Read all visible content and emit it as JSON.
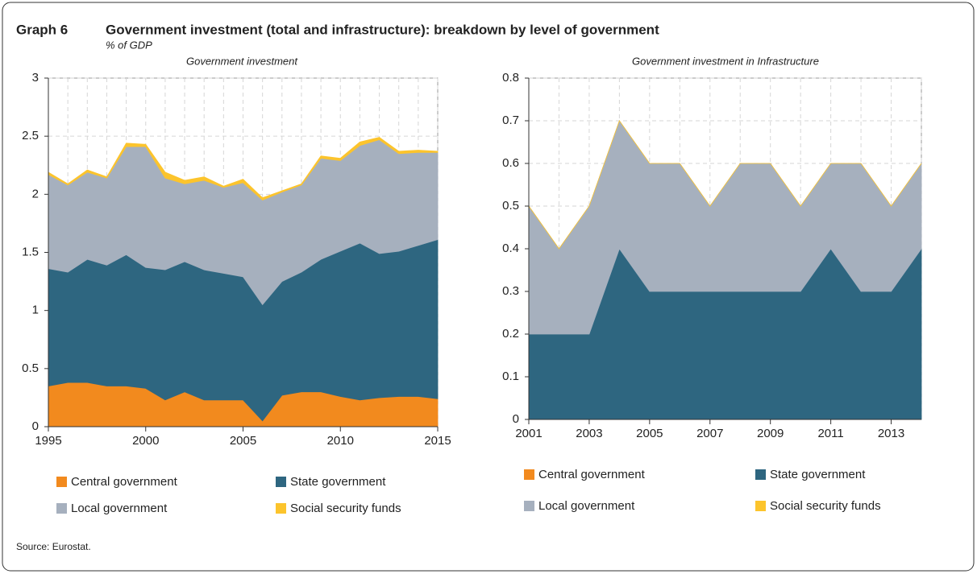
{
  "header": {
    "label": "Graph 6",
    "title": "Government investment (total and infrastructure): breakdown by level of government",
    "subtitle": "% of GDP"
  },
  "source": "Source: Eurostat.",
  "chart_data": [
    {
      "type": "area",
      "stacked": true,
      "title": "Government investment",
      "x": [
        1995,
        1996,
        1997,
        1998,
        1999,
        2000,
        2001,
        2002,
        2003,
        2004,
        2005,
        2006,
        2007,
        2008,
        2009,
        2010,
        2011,
        2012,
        2013,
        2014,
        2015
      ],
      "xlim": [
        1995,
        2015
      ],
      "xticks": [
        1995,
        2000,
        2005,
        2010,
        2015
      ],
      "ylim": [
        0,
        3
      ],
      "yticks": [
        0,
        0.5,
        1,
        1.5,
        2,
        2.5,
        3
      ],
      "grid": true,
      "legend": "bottom",
      "series": [
        {
          "name": "Central government",
          "color": "#f28a1e",
          "values": [
            0.35,
            0.38,
            0.38,
            0.35,
            0.35,
            0.33,
            0.23,
            0.3,
            0.23,
            0.23,
            0.23,
            0.05,
            0.27,
            0.3,
            0.3,
            0.26,
            0.23,
            0.25,
            0.26,
            0.26,
            0.24
          ]
        },
        {
          "name": "State government",
          "color": "#2e6680",
          "values": [
            1.01,
            0.95,
            1.06,
            1.04,
            1.13,
            1.04,
            1.12,
            1.12,
            1.12,
            1.09,
            1.06,
            1.0,
            0.98,
            1.03,
            1.14,
            1.25,
            1.35,
            1.24,
            1.25,
            1.3,
            1.37
          ]
        },
        {
          "name": "Local government",
          "color": "#a6b0be",
          "values": [
            0.81,
            0.75,
            0.75,
            0.75,
            0.93,
            1.04,
            0.79,
            0.67,
            0.77,
            0.74,
            0.81,
            0.9,
            0.77,
            0.75,
            0.87,
            0.78,
            0.84,
            0.98,
            0.84,
            0.8,
            0.75
          ]
        },
        {
          "name": "Social security funds",
          "color": "#fcc42c",
          "values": [
            0.02,
            0.01,
            0.02,
            0.01,
            0.03,
            0.02,
            0.05,
            0.03,
            0.03,
            0.01,
            0.03,
            0.02,
            0.01,
            0.01,
            0.02,
            0.02,
            0.03,
            0.02,
            0.02,
            0.02,
            0.01
          ]
        }
      ]
    },
    {
      "type": "area",
      "stacked": true,
      "title": "Government investment in Infrastructure",
      "x": [
        2001,
        2002,
        2003,
        2004,
        2005,
        2006,
        2007,
        2008,
        2009,
        2010,
        2011,
        2012,
        2013,
        2014
      ],
      "xlim": [
        2001,
        2014
      ],
      "xticks": [
        2001,
        2003,
        2005,
        2007,
        2009,
        2011,
        2013
      ],
      "ylim": [
        0,
        0.8
      ],
      "yticks": [
        0,
        0.1,
        0.2,
        0.3,
        0.4,
        0.5,
        0.6,
        0.7,
        0.8
      ],
      "grid": true,
      "legend": "bottom",
      "series": [
        {
          "name": "Central government",
          "color": "#f28a1e",
          "values": [
            0,
            0,
            0,
            0,
            0,
            0,
            0,
            0,
            0,
            0,
            0,
            0,
            0,
            0
          ]
        },
        {
          "name": "State government",
          "color": "#2e6680",
          "values": [
            0.2,
            0.2,
            0.2,
            0.4,
            0.3,
            0.3,
            0.3,
            0.3,
            0.3,
            0.3,
            0.4,
            0.3,
            0.3,
            0.4
          ]
        },
        {
          "name": "Local government",
          "color": "#a6b0be",
          "values": [
            0.3,
            0.2,
            0.3,
            0.3,
            0.3,
            0.3,
            0.2,
            0.3,
            0.3,
            0.2,
            0.2,
            0.3,
            0.2,
            0.2
          ]
        },
        {
          "name": "Social security funds",
          "color": "#fcc42c",
          "values": [
            0,
            0,
            0,
            0,
            0,
            0,
            0,
            0,
            0,
            0,
            0,
            0,
            0,
            0
          ]
        }
      ]
    }
  ]
}
